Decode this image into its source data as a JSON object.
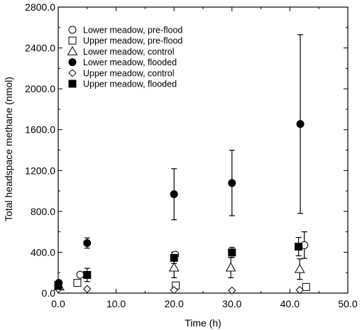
{
  "chart_data": {
    "type": "scatter",
    "title": "",
    "xlabel": "Time (h)",
    "ylabel": "Total headspace methane (nmol)",
    "xlim": [
      0,
      50
    ],
    "ylim": [
      0,
      2800
    ],
    "x_ticks": [
      "0.0",
      "10.0",
      "20.0",
      "30.0",
      "40.0",
      "50.0"
    ],
    "y_ticks": [
      "0.0",
      "400.0",
      "800.0",
      "1200.0",
      "1600.0",
      "2000.0",
      "2400.0",
      "2800.0"
    ],
    "legend_position": "top-left",
    "grid": false,
    "series": [
      {
        "name": "Lower meadow, pre-flood",
        "marker": "circle-open",
        "points": [
          {
            "x": 0.0,
            "y": 60,
            "err": 0
          },
          {
            "x": 3.8,
            "y": 180,
            "err": 0
          },
          {
            "x": 20.2,
            "y": 375,
            "err": 0
          },
          {
            "x": 42.5,
            "y": 470,
            "err": 130
          }
        ]
      },
      {
        "name": "Upper meadow, pre-flood",
        "marker": "square-open",
        "points": [
          {
            "x": 0.0,
            "y": 80,
            "err": 0
          },
          {
            "x": 3.3,
            "y": 100,
            "err": 0
          },
          {
            "x": 20.3,
            "y": 75,
            "err": 0
          },
          {
            "x": 42.8,
            "y": 60,
            "err": 0
          }
        ]
      },
      {
        "name": "Lower meadow, control",
        "marker": "triangle-open",
        "points": [
          {
            "x": 0.2,
            "y": 65,
            "err": 0
          },
          {
            "x": 20.0,
            "y": 250,
            "err": 100
          },
          {
            "x": 29.8,
            "y": 250,
            "err": 100
          },
          {
            "x": 41.7,
            "y": 235,
            "err": 100
          }
        ]
      },
      {
        "name": "Lower meadow, flooded",
        "marker": "circle-filled",
        "points": [
          {
            "x": 0.1,
            "y": 100,
            "err": 0
          },
          {
            "x": 5.0,
            "y": 490,
            "err": 50
          },
          {
            "x": 20.0,
            "y": 968,
            "err": 250
          },
          {
            "x": 30.0,
            "y": 1078,
            "err": 320
          },
          {
            "x": 41.8,
            "y": 1655,
            "err": 875
          }
        ]
      },
      {
        "name": "Upper meadow, control",
        "marker": "diamond-open",
        "points": [
          {
            "x": 0.0,
            "y": 40,
            "err": 0
          },
          {
            "x": 5.0,
            "y": 40,
            "err": 0
          },
          {
            "x": 20.0,
            "y": 30,
            "err": 0
          },
          {
            "x": 30.0,
            "y": 25,
            "err": 0
          },
          {
            "x": 41.7,
            "y": 30,
            "err": 0
          }
        ]
      },
      {
        "name": "Upper meadow, flooded",
        "marker": "square-filled",
        "points": [
          {
            "x": 0.0,
            "y": 70,
            "err": 0
          },
          {
            "x": 5.0,
            "y": 178,
            "err": 65
          },
          {
            "x": 20.0,
            "y": 345,
            "err": 55
          },
          {
            "x": 30.0,
            "y": 398,
            "err": 50
          },
          {
            "x": 41.5,
            "y": 455,
            "err": 90
          }
        ]
      }
    ]
  }
}
